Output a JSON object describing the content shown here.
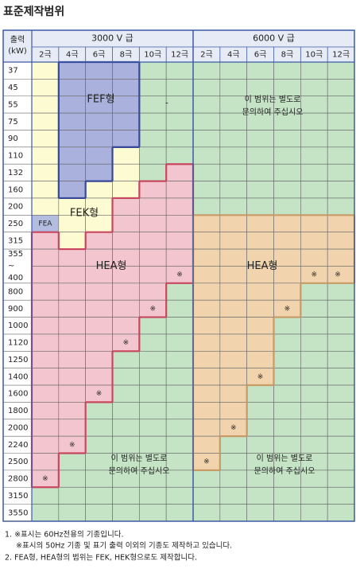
{
  "title": "표준제작범위",
  "table": {
    "output_header": [
      "출력",
      "(kW)"
    ],
    "groups": [
      "3000 V 급",
      "6000 V 급"
    ],
    "poles": [
      "2극",
      "4극",
      "6극",
      "8극",
      "10극",
      "12극"
    ],
    "rows": [
      "37",
      "45",
      "55",
      "75",
      "90",
      "110",
      "132",
      "160",
      "200",
      "250",
      "315",
      [
        "355",
        "~",
        "400"
      ],
      "800",
      "900",
      "1000",
      "1120",
      "1250",
      "1400",
      "1600",
      "1800",
      "2000",
      "2240",
      "2500",
      "2800",
      "3150",
      "3550"
    ],
    "labels": {
      "fef": "FEF형",
      "fek": "FEK형",
      "fea": "FEA",
      "hea": "HEA형"
    },
    "mark": "※",
    "dash": "-",
    "consult": [
      "이 범위는 별도로",
      "문의하여 주십시오"
    ]
  },
  "notes": [
    "1.  ※표시는 60Hz전용의 기종입니다.",
    "※표시의 50Hz 기종 및 표기 출력 이외의 기종도 제작하고 있습니다.",
    "2.  FEA형, HEA형의 범위는 FEK, HEK형으로도 제작합니다."
  ]
}
